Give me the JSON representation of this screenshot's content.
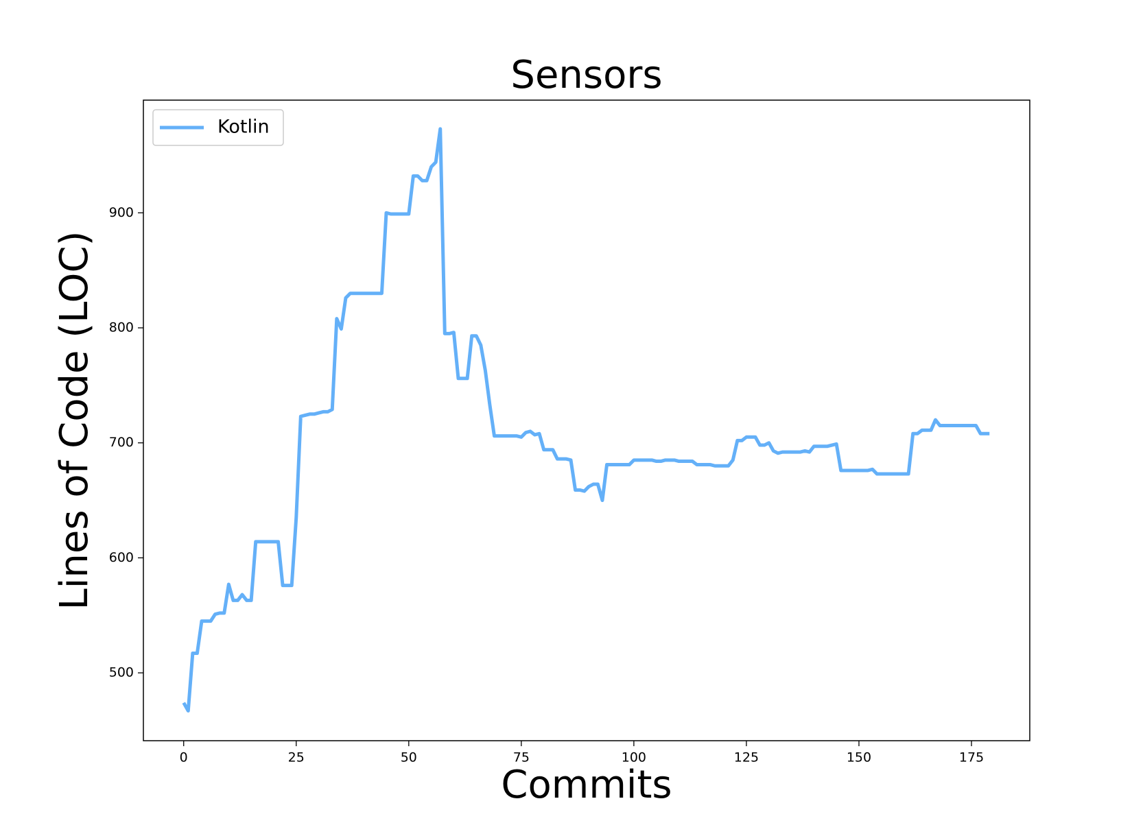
{
  "chart_data": {
    "type": "line",
    "title": "Sensors",
    "xlabel": "Commits",
    "ylabel": "Lines of Code (LOC)",
    "x": [
      0,
      1,
      2,
      3,
      4,
      5,
      6,
      7,
      8,
      9,
      10,
      11,
      12,
      13,
      14,
      15,
      16,
      17,
      18,
      19,
      20,
      21,
      22,
      23,
      24,
      25,
      26,
      27,
      28,
      29,
      30,
      31,
      32,
      33,
      34,
      35,
      36,
      37,
      38,
      39,
      40,
      41,
      42,
      43,
      44,
      45,
      46,
      47,
      48,
      49,
      50,
      51,
      52,
      53,
      54,
      55,
      56,
      57,
      58,
      59,
      60,
      61,
      62,
      63,
      64,
      65,
      66,
      67,
      68,
      69,
      70,
      71,
      72,
      73,
      74,
      75,
      76,
      77,
      78,
      79,
      80,
      81,
      82,
      83,
      84,
      85,
      86,
      87,
      88,
      89,
      90,
      91,
      92,
      93,
      94,
      95,
      96,
      97,
      98,
      99,
      100,
      101,
      102,
      103,
      104,
      105,
      106,
      107,
      108,
      109,
      110,
      111,
      112,
      113,
      114,
      115,
      116,
      117,
      118,
      119,
      120,
      121,
      122,
      123,
      124,
      125,
      126,
      127,
      128,
      129,
      130,
      131,
      132,
      133,
      134,
      135,
      136,
      137,
      138,
      139,
      140,
      141,
      142,
      143,
      144,
      145,
      146,
      147,
      148,
      149,
      150,
      151,
      152,
      153,
      154,
      155,
      156,
      157,
      158,
      159,
      160,
      161,
      162,
      163,
      164,
      165,
      166,
      167,
      168,
      169,
      170,
      171,
      172,
      173,
      174,
      175,
      176,
      177,
      178,
      179
    ],
    "series": [
      {
        "name": "Kotlin",
        "color": "#64b0f8",
        "values": [
          474,
          467,
          517,
          517,
          545,
          545,
          545,
          551,
          552,
          552,
          577,
          563,
          563,
          568,
          563,
          563,
          614,
          614,
          614,
          614,
          614,
          614,
          576,
          576,
          576,
          635,
          723,
          724,
          725,
          725,
          726,
          727,
          727,
          729,
          808,
          799,
          826,
          830,
          830,
          830,
          830,
          830,
          830,
          830,
          830,
          900,
          899,
          899,
          899,
          899,
          899,
          932,
          932,
          928,
          928,
          940,
          944,
          973,
          795,
          795,
          796,
          756,
          756,
          756,
          793,
          793,
          785,
          763,
          733,
          706,
          706,
          706,
          706,
          706,
          706,
          705,
          709,
          710,
          707,
          708,
          694,
          694,
          694,
          686,
          686,
          686,
          685,
          659,
          659,
          658,
          662,
          664,
          664,
          650,
          681,
          681,
          681,
          681,
          681,
          681,
          685,
          685,
          685,
          685,
          685,
          684,
          684,
          685,
          685,
          685,
          684,
          684,
          684,
          684,
          681,
          681,
          681,
          681,
          680,
          680,
          680,
          680,
          685,
          702,
          702,
          705,
          705,
          705,
          698,
          698,
          700,
          693,
          691,
          692,
          692,
          692,
          692,
          692,
          693,
          692,
          697,
          697,
          697,
          697,
          698,
          699,
          676,
          676,
          676,
          676,
          676,
          676,
          676,
          677,
          673,
          673,
          673,
          673,
          673,
          673,
          673,
          673,
          708,
          708,
          711,
          711,
          711,
          720,
          715,
          715,
          715,
          715,
          715,
          715,
          715,
          715,
          715,
          708,
          708,
          708
        ]
      }
    ],
    "xlim": [
      -8.95,
      187.95
    ],
    "xticks": [
      0,
      25,
      50,
      75,
      100,
      125,
      150,
      175
    ],
    "ylim": [
      441,
      998
    ],
    "yticks": [
      500,
      600,
      700,
      800,
      900
    ],
    "grid": false,
    "legend": "upper left"
  }
}
